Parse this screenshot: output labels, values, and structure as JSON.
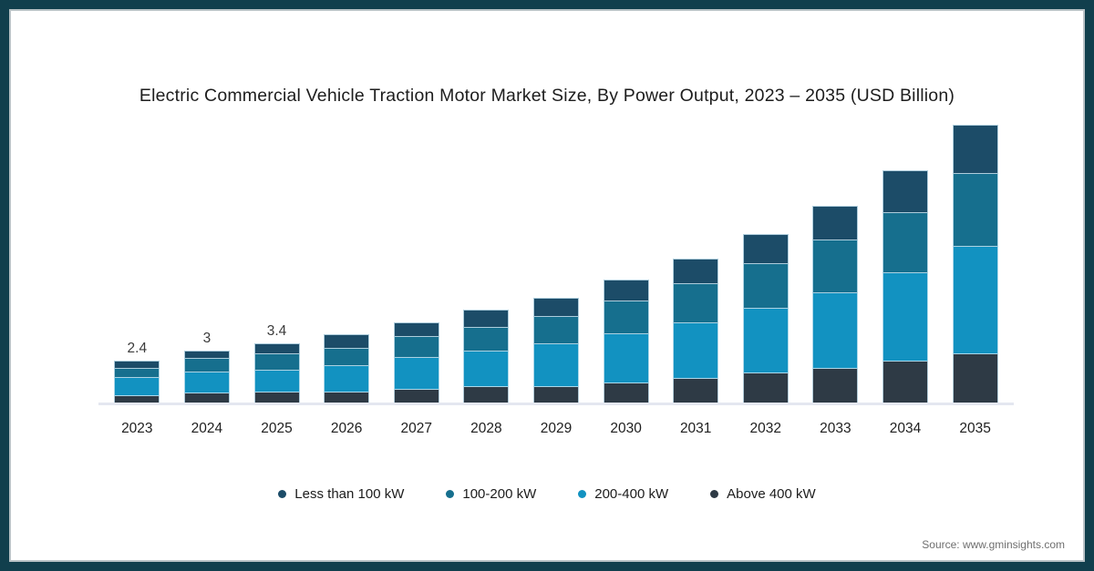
{
  "frame": {
    "border_color": "#113f4d",
    "inner_line_color": "#b9c2c6",
    "background": "#ffffff"
  },
  "title": "Electric Commercial Vehicle Traction Motor Market Size, By Power Output, 2023 – 2035 (USD Billion)",
  "source": "Source: www.gminsights.com",
  "chart_data": {
    "type": "bar",
    "stacked": true,
    "title": "Electric Commercial Vehicle Traction Motor Market Size, By Power Output, 2023 – 2035 (USD Billion)",
    "unit": "USD Billion",
    "categories": [
      "2023",
      "2024",
      "2025",
      "2026",
      "2027",
      "2028",
      "2029",
      "2030",
      "2031",
      "2032",
      "2033",
      "2034",
      "2035"
    ],
    "series": [
      {
        "name": "Less than 100 kW",
        "color": "#1c4c68",
        "values": [
          0.45,
          0.45,
          0.6,
          0.8,
          0.85,
          1.0,
          1.1,
          1.25,
          1.45,
          1.7,
          1.95,
          2.4,
          2.8
        ]
      },
      {
        "name": "100-200 kW",
        "color": "#166f8e",
        "values": [
          0.5,
          0.8,
          0.95,
          1.0,
          1.15,
          1.35,
          1.55,
          1.85,
          2.2,
          2.55,
          3.0,
          3.45,
          4.15
        ]
      },
      {
        "name": "200-400 kW",
        "color": "#1292c1",
        "values": [
          1.05,
          1.2,
          1.25,
          1.5,
          1.85,
          2.0,
          2.4,
          2.75,
          3.15,
          3.65,
          4.3,
          5.0,
          6.05
        ]
      },
      {
        "name": "Above 400 kW",
        "color": "#2e3a45",
        "values": [
          0.4,
          0.55,
          0.6,
          0.6,
          0.75,
          0.95,
          0.95,
          1.15,
          1.4,
          1.7,
          1.95,
          2.35,
          2.8
        ]
      }
    ],
    "stack_order_top_to_bottom": [
      "Less than 100 kW",
      "100-200 kW",
      "200-400 kW",
      "Above 400 kW"
    ],
    "totals": [
      2.4,
      3.0,
      3.4,
      3.9,
      4.6,
      5.3,
      6.0,
      7.0,
      8.2,
      9.6,
      11.2,
      13.2,
      15.8
    ],
    "visible_total_labels": {
      "2023": "2.4",
      "2024": "3",
      "2025": "3.4"
    },
    "ylim": [
      0,
      16.4
    ],
    "grid": false,
    "y_axis_visible": false,
    "legend_position": "bottom"
  }
}
